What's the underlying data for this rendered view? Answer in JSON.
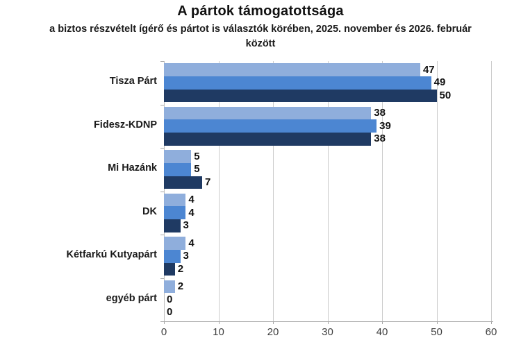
{
  "title": "A pártok támogatottsága",
  "subtitle": "a biztos részvételt ígérő és pártot is választók körében, 2025. november és 2026. február\nközött",
  "chart_data": {
    "type": "bar",
    "orientation": "horizontal",
    "title": "A pártok támogatottsága",
    "subtitle": "a biztos részvételt ígérő és pártot is választók körében, 2025. november és 2026. február között",
    "categories": [
      "Tisza Párt",
      "Fidesz-KDNP",
      "Mi Hazánk",
      "DK",
      "Kétfarkú Kutyapárt",
      "egyéb párt"
    ],
    "series": [
      {
        "name": "light-blue-series",
        "color": "#8FAEDC",
        "values": [
          47,
          38,
          5,
          4,
          4,
          2
        ]
      },
      {
        "name": "medium-blue-series",
        "color": "#4C86D2",
        "values": [
          49,
          39,
          5,
          4,
          3,
          0
        ]
      },
      {
        "name": "dark-navy-series",
        "color": "#1F3A63",
        "values": [
          50,
          38,
          7,
          3,
          2,
          0
        ]
      }
    ],
    "xlabel": "",
    "ylabel": "",
    "xlim": [
      0,
      60
    ],
    "xticks": [
      0,
      10,
      20,
      30,
      40,
      50,
      60
    ],
    "grid": true,
    "legend": false,
    "value_labels": true
  },
  "colors": {
    "background": "#ffffff",
    "gridline": "#cccccc",
    "axis": "#a6a6a6",
    "text": "#111111",
    "tick_text": "#3f3f3f"
  }
}
